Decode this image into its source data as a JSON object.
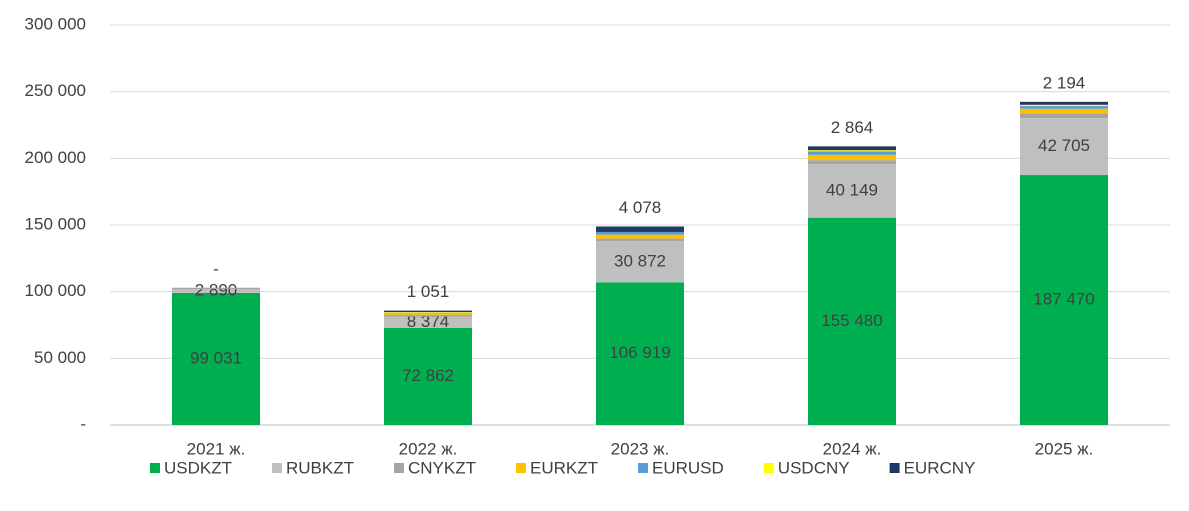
{
  "chart_data": {
    "type": "stacked_bar",
    "categories": [
      "2021 ж.",
      "2022 ж.",
      "2023 ж.",
      "2024 ж.",
      "2025 ж."
    ],
    "series": [
      {
        "name": "USDKZT",
        "color": "#00b050",
        "values": [
          99031,
          72862,
          106919,
          155480,
          187470
        ],
        "value_labels": [
          "99 031",
          "72 862",
          "106 919",
          "155 480",
          "187 470"
        ]
      },
      {
        "name": "RUBKZT",
        "color": "#bfbfbf",
        "values": [
          2890,
          8374,
          30872,
          40149,
          42705
        ],
        "value_labels": [
          "2 890",
          "8 374",
          "30 872",
          "40 149",
          "42 705"
        ]
      },
      {
        "name": "CNYKZT",
        "color": "#a5a5a5",
        "values": [
          1000,
          1500,
          2000,
          3000,
          3500
        ]
      },
      {
        "name": "EURKZT",
        "color": "#ffc000",
        "values": [
          0,
          1000,
          3000,
          4000,
          3500
        ]
      },
      {
        "name": "EURUSD",
        "color": "#5b9bd5",
        "values": [
          0,
          500,
          2000,
          2500,
          2000
        ]
      },
      {
        "name": "USDCNY",
        "color": "#ffff00",
        "values": [
          0,
          500,
          0,
          1000,
          1000
        ]
      },
      {
        "name": "EURCNY",
        "color": "#203864",
        "values": [
          0,
          1051,
          4078,
          2864,
          2194
        ],
        "value_labels": [
          "-",
          "1 051",
          "4 078",
          "2 864",
          "2 194"
        ]
      }
    ],
    "ylim": [
      0,
      300000
    ],
    "yticks": [
      {
        "value": 0,
        "label": "-"
      },
      {
        "value": 50000,
        "label": "50 000"
      },
      {
        "value": 100000,
        "label": "100 000"
      },
      {
        "value": 150000,
        "label": "150 000"
      },
      {
        "value": 200000,
        "label": "200 000"
      },
      {
        "value": 250000,
        "label": "250 000"
      },
      {
        "value": 300000,
        "label": "300 000"
      }
    ],
    "grid": true,
    "legend": "bottom"
  }
}
